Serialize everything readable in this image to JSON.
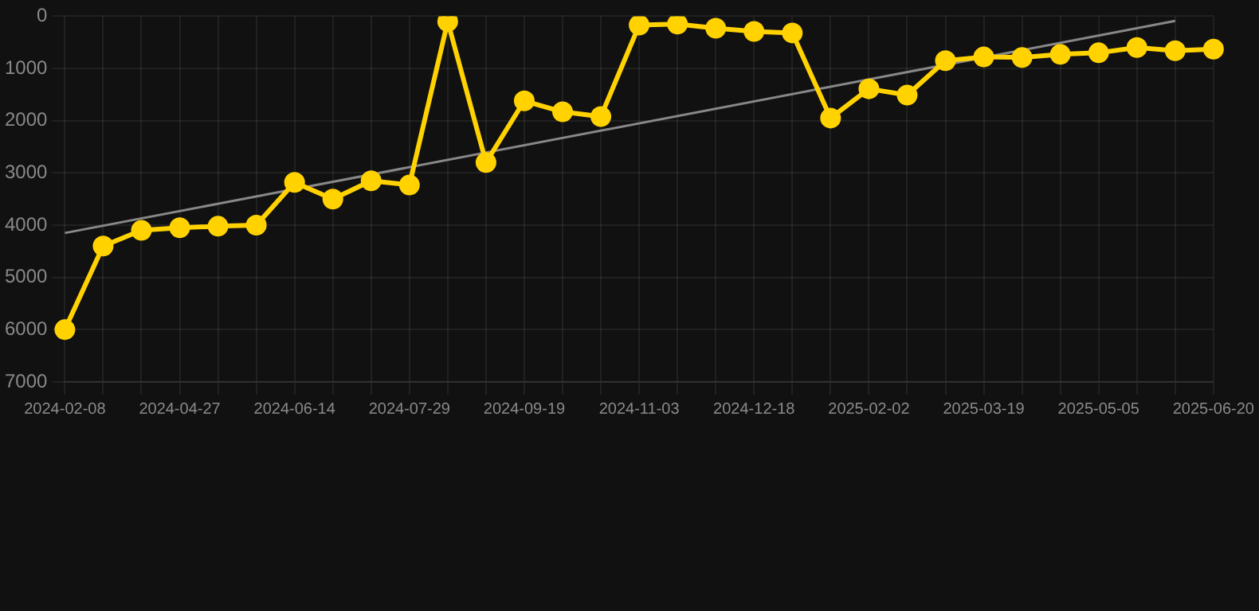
{
  "chart_data": {
    "type": "line",
    "categories": [
      "2024-02-08",
      null,
      null,
      "2024-04-27",
      null,
      null,
      "2024-06-14",
      null,
      null,
      "2024-07-29",
      null,
      null,
      "2024-09-19",
      null,
      null,
      "2024-11-03",
      null,
      null,
      "2024-12-18",
      null,
      null,
      "2025-02-02",
      null,
      null,
      "2025-03-19",
      null,
      null,
      "2025-05-05",
      null,
      null,
      "2025-06-20"
    ],
    "series": [
      {
        "color": "#ffd200",
        "marker": "circle",
        "values": [
          6000,
          4400,
          4100,
          4050,
          4020,
          4000,
          3180,
          3500,
          3150,
          3230,
          100,
          2800,
          1620,
          1830,
          1920,
          170,
          150,
          230,
          290,
          320,
          1950,
          1390,
          1510,
          850,
          780,
          790,
          730,
          700,
          600,
          660,
          630
        ]
      },
      {
        "color": "#888888",
        "marker": "none",
        "values": [
          4150,
          null,
          null,
          null,
          null,
          null,
          null,
          null,
          null,
          null,
          null,
          null,
          null,
          null,
          null,
          null,
          null,
          null,
          null,
          null,
          null,
          null,
          null,
          null,
          null,
          null,
          null,
          null,
          null,
          90,
          null
        ]
      }
    ],
    "ylim": [
      7000,
      0
    ],
    "yticks": [
      0,
      1000,
      2000,
      3000,
      4000,
      5000,
      6000,
      7000
    ],
    "grid": true,
    "legend": false
  }
}
